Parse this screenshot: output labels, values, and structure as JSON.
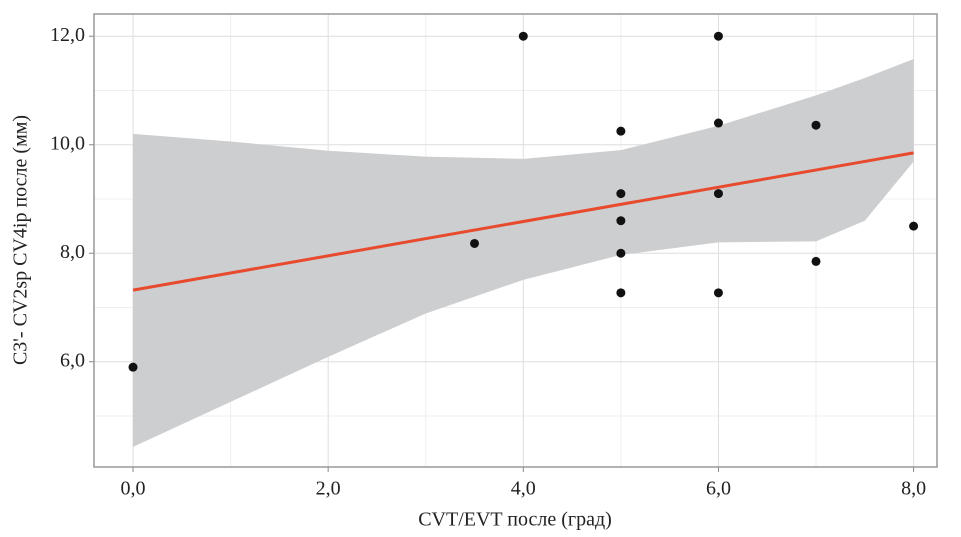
{
  "chart_data": {
    "type": "scatter",
    "x_label": "CVT/EVT после (град)",
    "y_label": "C3'- CV2sp CV4ip после (мм)",
    "x": [
      0,
      3.5,
      4,
      5,
      5,
      5,
      5,
      5,
      6,
      6,
      6,
      6,
      7,
      7,
      8
    ],
    "values": [
      5.9,
      8.18,
      12.0,
      10.25,
      9.1,
      8.6,
      8.0,
      7.27,
      12.0,
      10.4,
      9.1,
      7.27,
      10.36,
      7.85,
      8.5
    ],
    "color": "#111111",
    "fit": {
      "x": [
        0,
        8
      ],
      "values": [
        7.32,
        9.85
      ],
      "color": "#e84a2e"
    },
    "band": {
      "x": [
        0,
        1,
        2,
        3,
        4,
        5,
        6,
        7,
        7.5,
        8
      ],
      "upper": [
        10.2,
        10.06,
        9.89,
        9.78,
        9.74,
        9.9,
        10.35,
        10.91,
        11.23,
        11.58
      ],
      "lower": [
        4.43,
        5.26,
        6.09,
        6.89,
        7.51,
        7.97,
        8.2,
        8.22,
        8.6,
        9.69
      ],
      "color": "#c9cbcd"
    },
    "xlim": [
      -0.4,
      8.24
    ],
    "ylim": [
      4.06,
      12.41
    ],
    "xticks": [
      {
        "value": 0,
        "label": "0,0"
      },
      {
        "value": 2,
        "label": "2,0"
      },
      {
        "value": 4,
        "label": "4,0"
      },
      {
        "value": 6,
        "label": "6,0"
      },
      {
        "value": 8,
        "label": "8,0"
      }
    ],
    "yticks": [
      {
        "value": 6,
        "label": "6,0"
      },
      {
        "value": 8,
        "label": "8,0"
      },
      {
        "value": 10,
        "label": "10,0"
      },
      {
        "value": 12,
        "label": "12,0"
      }
    ],
    "xminorticks": [
      1,
      3,
      5,
      7
    ],
    "yminorticks": [
      5,
      7,
      9,
      11
    ],
    "grid": true
  }
}
